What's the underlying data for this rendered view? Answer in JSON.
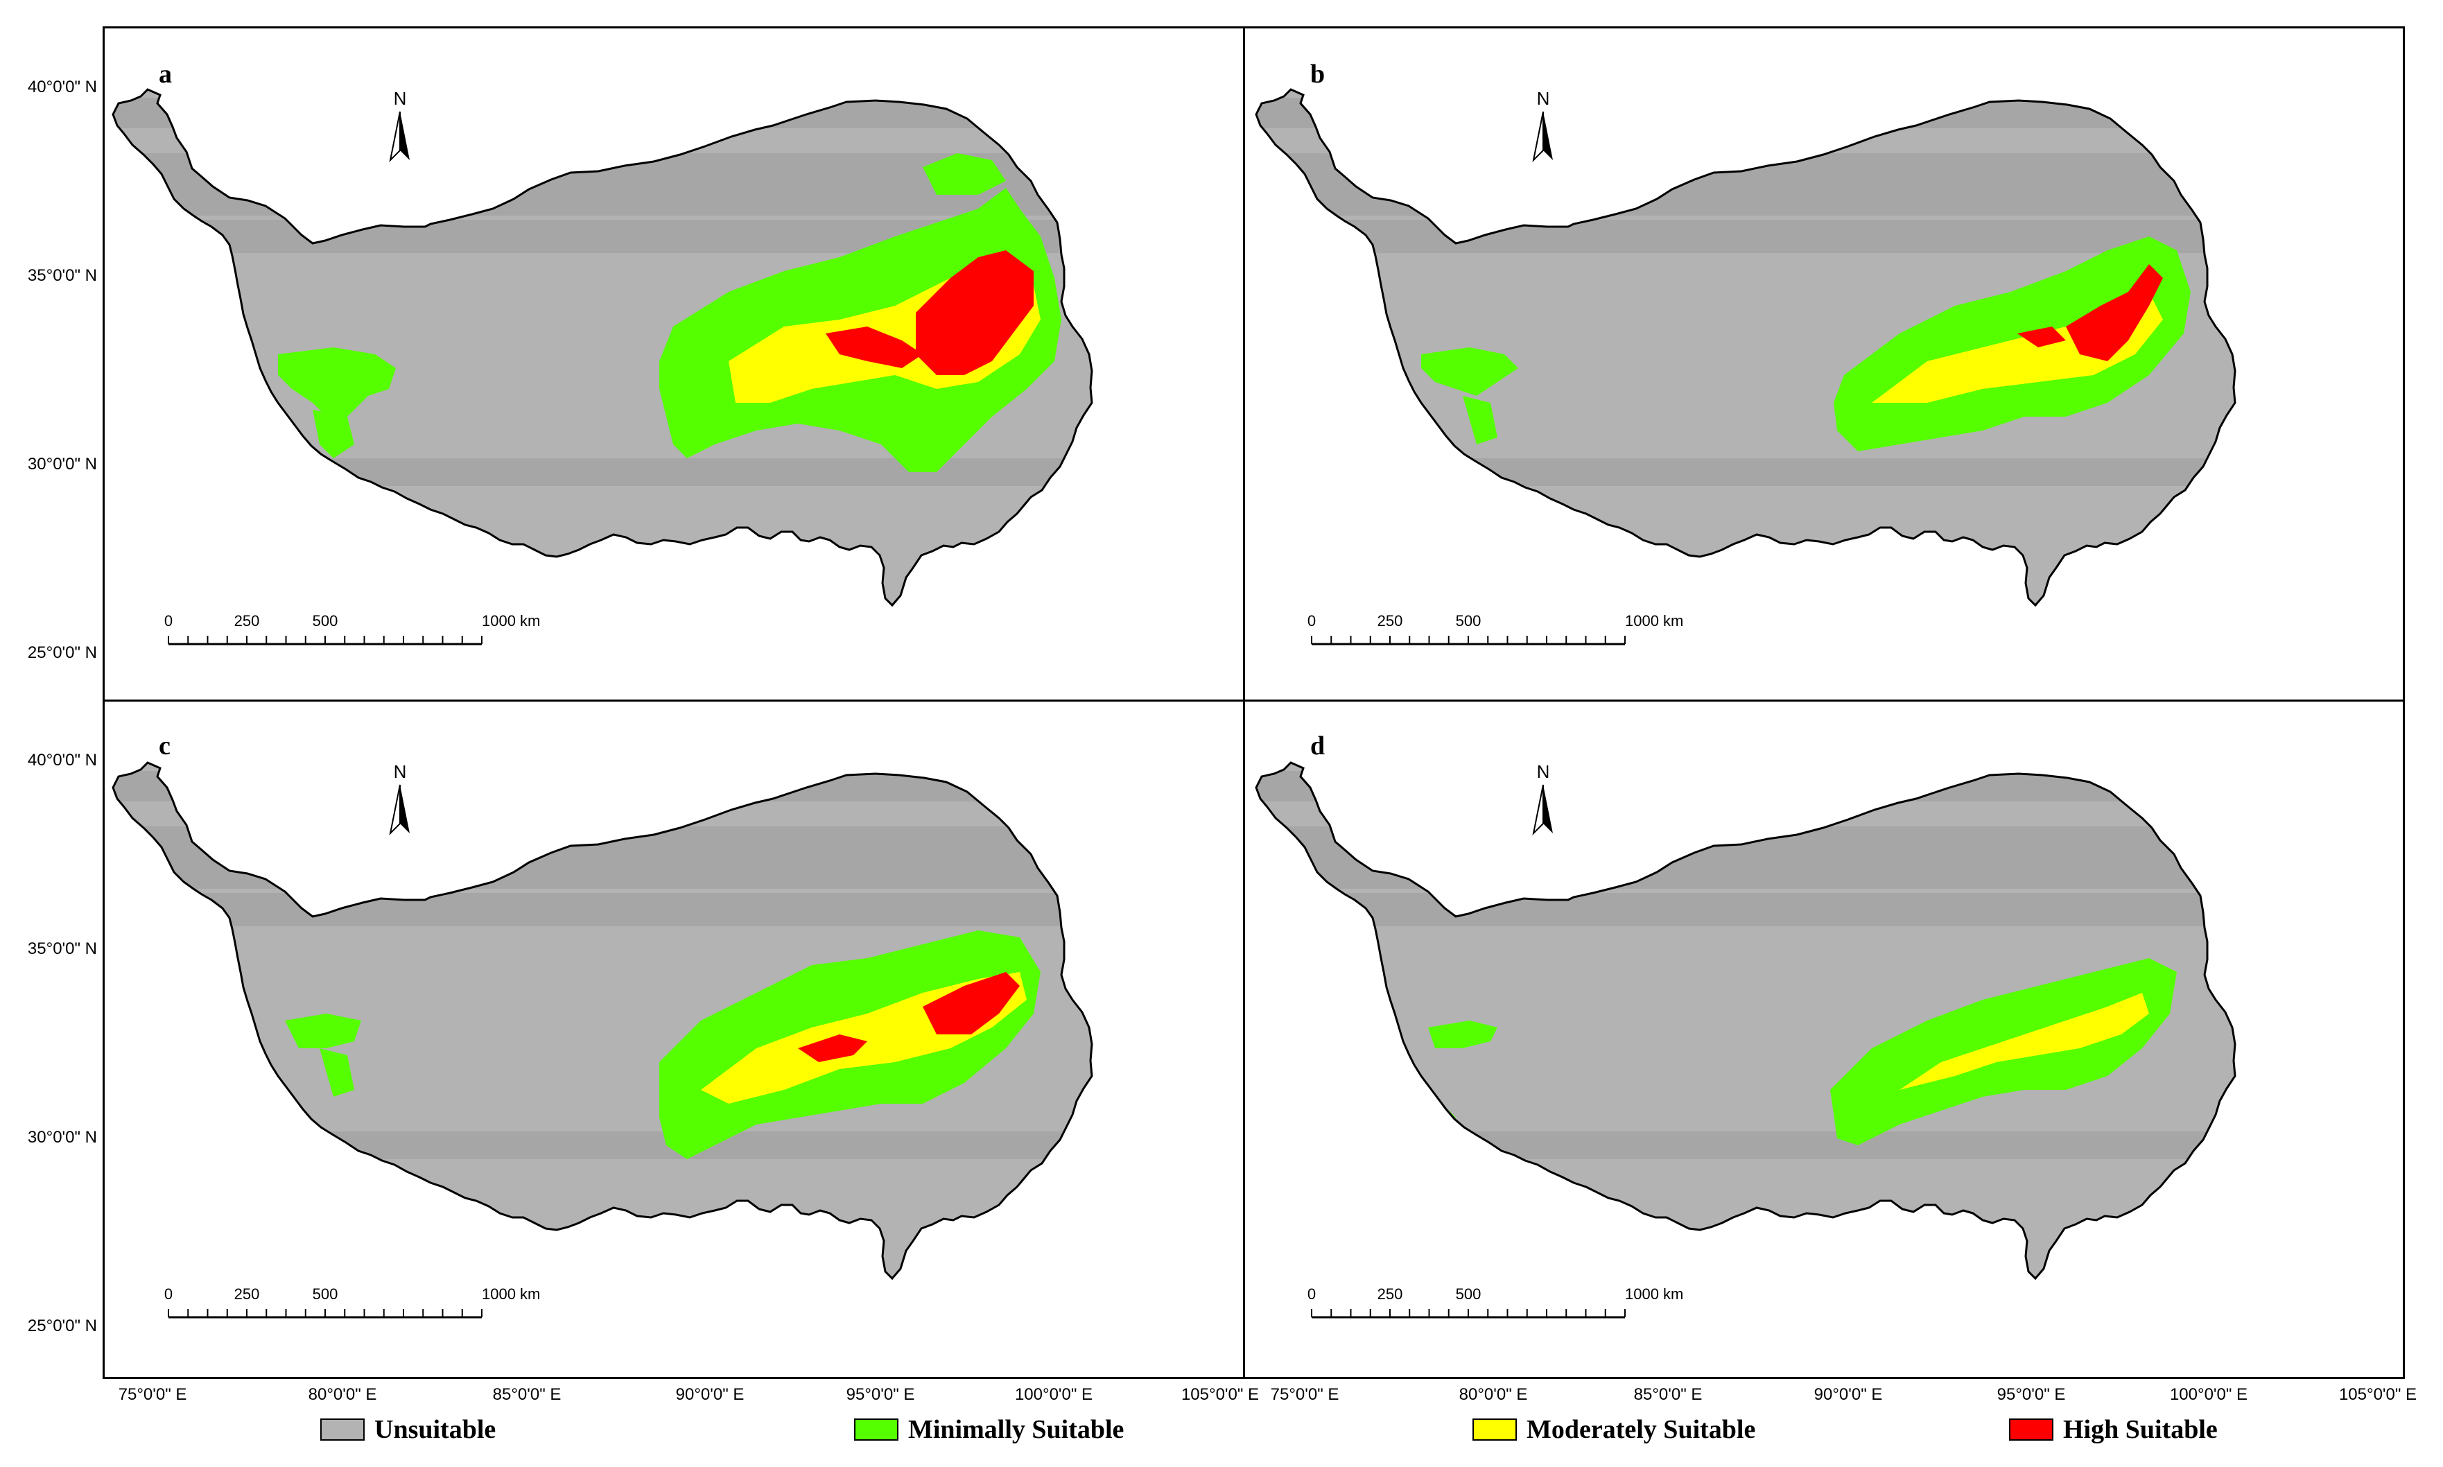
{
  "panels": [
    {
      "id": "a",
      "label": "a"
    },
    {
      "id": "b",
      "label": "b"
    },
    {
      "id": "c",
      "label": "c"
    },
    {
      "id": "d",
      "label": "d"
    }
  ],
  "north_arrow": {
    "label": "N"
  },
  "scale_bar": {
    "labels": [
      "0",
      "250",
      "500",
      "1000 km"
    ]
  },
  "latitude_labels": [
    "40°0'0\" N",
    "35°0'0\" N",
    "30°0'0\" N",
    "25°0'0\" N"
  ],
  "longitude_labels_left": [
    "75°0'0\" E",
    "80°0'0\" E",
    "85°0'0\" E",
    "90°0'0\" E",
    "95°0'0\" E",
    "100°0'0\" E",
    "105°0'0\" E"
  ],
  "longitude_labels_right": [
    "75°0'0\" E",
    "80°0'0\" E",
    "85°0'0\" E",
    "90°0'0\" E",
    "95°0'0\" E",
    "100°0'0\" E",
    "105°0'0\" E"
  ],
  "legend": [
    {
      "label": "Unsuitable",
      "color": "#b3b3b3"
    },
    {
      "label": "Minimally Suitable",
      "color": "#55ff00"
    },
    {
      "label": "Moderately Suitable",
      "color": "#ffff00"
    },
    {
      "label": "High Suitable",
      "color": "#ff0000"
    }
  ],
  "colors": {
    "unsuitable": "#b3b3b3",
    "band": "#a6a6a6",
    "minimal": "#55ff00",
    "moderate": "#ffff00",
    "high": "#ff0000"
  }
}
